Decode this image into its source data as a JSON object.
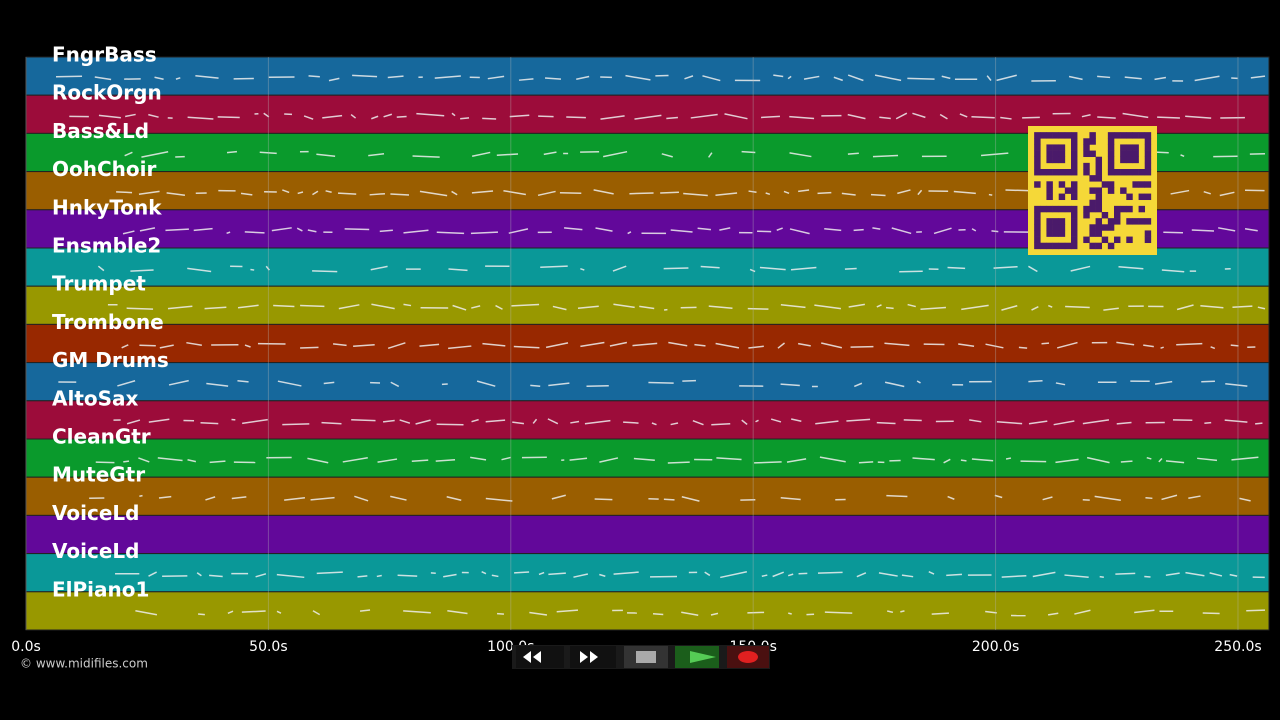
{
  "tracks": [
    {
      "name": "FngrBass",
      "color": "#16689c"
    },
    {
      "name": "RockOrgn",
      "color": "#9c0c3a"
    },
    {
      "name": "Bass&Ld",
      "color": "#0a9a2c"
    },
    {
      "name": "OohChoir",
      "color": "#9a5e00"
    },
    {
      "name": "HnkyTonk",
      "color": "#62089a"
    },
    {
      "name": "Ensmble2",
      "color": "#0a9898"
    },
    {
      "name": "Trumpet",
      "color": "#989800"
    },
    {
      "name": "Trombone",
      "color": "#982800"
    },
    {
      "name": "GM Drums",
      "color": "#16689c"
    },
    {
      "name": "AltoSax",
      "color": "#9c0c3a"
    },
    {
      "name": "CleanGtr",
      "color": "#0a9a2c"
    },
    {
      "name": "MuteGtr",
      "color": "#9a5e00"
    },
    {
      "name": "VoiceLd",
      "color": "#62089a"
    },
    {
      "name": "VoiceLd",
      "color": "#0a9898"
    },
    {
      "name": "ElPiano1",
      "color": "#989800"
    }
  ],
  "time_axis": {
    "xlim": [
      0,
      256.4
    ],
    "ticks": [
      {
        "value": 0,
        "label": "0.0s"
      },
      {
        "value": 50,
        "label": "50.0s"
      },
      {
        "value": 100,
        "label": "100.0s"
      },
      {
        "value": 150,
        "label": "150.0s"
      },
      {
        "value": 200,
        "label": "200.0s"
      },
      {
        "value": 250,
        "label": "250.0s"
      }
    ]
  },
  "credit": "© www.midifiles.com"
}
